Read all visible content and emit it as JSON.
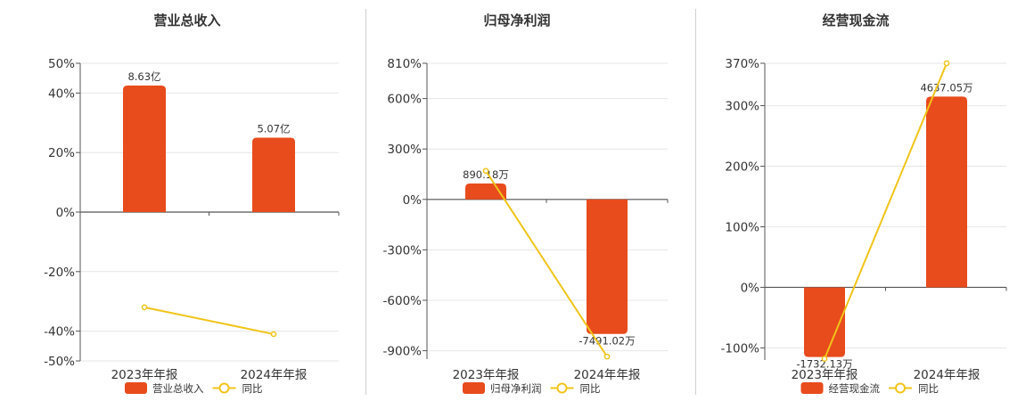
{
  "colors": {
    "bar": "#e84b1c",
    "line": "#f0c419",
    "grid": "#e6e6e6",
    "axis": "#555555"
  },
  "chart_data": [
    {
      "type": "bar",
      "title": "营业总收入",
      "categories": [
        "2023年年报",
        "2024年年报"
      ],
      "ylim": [
        -50,
        50
      ],
      "yticks": [
        50,
        40,
        20,
        0,
        -20,
        -40,
        -50
      ],
      "ytick_labels": [
        "50%",
        "40%",
        "20%",
        "0%",
        "-20%",
        "-40%",
        "-50%"
      ],
      "series": [
        {
          "name": "营业总收入",
          "type": "bar",
          "values": [
            42.5,
            25
          ],
          "labels": [
            "8.63亿",
            "5.07亿"
          ]
        },
        {
          "name": "同比",
          "type": "line",
          "values": [
            -32,
            -41
          ]
        }
      ],
      "legend": "bottom-center"
    },
    {
      "type": "bar",
      "title": "归母净利润",
      "categories": [
        "2023年年报",
        "2024年年报"
      ],
      "ylim": [
        -950,
        810
      ],
      "yticks": [
        810,
        600,
        300,
        0,
        -300,
        -600,
        -900
      ],
      "ytick_labels": [
        "810%",
        "600%",
        "300%",
        "0%",
        "-300%",
        "-600%",
        "-900%"
      ],
      "series": [
        {
          "name": "归母净利润",
          "type": "bar",
          "values": [
            95,
            -800
          ],
          "labels": [
            "890.18万",
            "-7491.02万"
          ]
        },
        {
          "name": "同比",
          "type": "line",
          "values": [
            170,
            -935
          ]
        }
      ],
      "legend": "bottom-center"
    },
    {
      "type": "bar",
      "title": "经营现金流",
      "categories": [
        "2023年年报",
        "2024年年报"
      ],
      "ylim": [
        -120,
        370
      ],
      "yticks": [
        370,
        300,
        200,
        100,
        0,
        -100
      ],
      "ytick_labels": [
        "370%",
        "300%",
        "200%",
        "100%",
        "0%",
        "-100%"
      ],
      "series": [
        {
          "name": "经营现金流",
          "type": "bar",
          "values": [
            -115,
            315
          ],
          "labels": [
            "-1732.13万",
            "4637.05万"
          ]
        },
        {
          "name": "同比",
          "type": "line",
          "values": [
            -118,
            370
          ]
        }
      ],
      "legend": "bottom-center"
    }
  ]
}
